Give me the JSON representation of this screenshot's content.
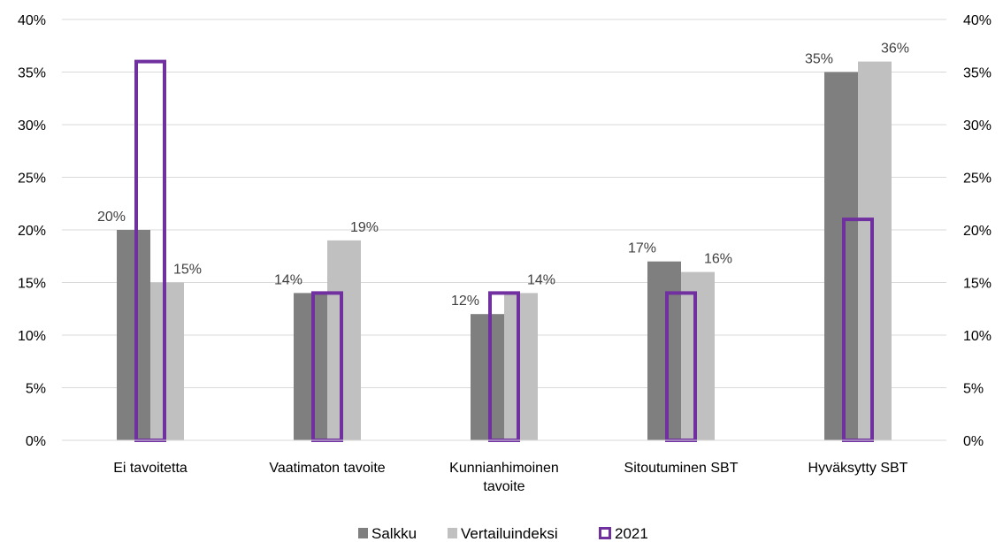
{
  "chart_data": {
    "type": "bar",
    "categories": [
      [
        "Ei tavoitetta"
      ],
      [
        "Vaatimaton tavoite"
      ],
      [
        "Kunnianhimoinen",
        "tavoite"
      ],
      [
        "Sitoutuminen SBT"
      ],
      [
        "Hyväksytty SBT"
      ]
    ],
    "series": [
      {
        "name": "Salkku",
        "color": "#7f7f7f",
        "values": [
          20,
          14,
          12,
          17,
          35
        ],
        "labels": [
          "20%",
          "14%",
          "12%",
          "17%",
          "35%"
        ]
      },
      {
        "name": "Vertailuindeksi",
        "color": "#c0c0c0",
        "values": [
          15,
          19,
          14,
          16,
          36
        ],
        "labels": [
          "15%",
          "19%",
          "14%",
          "16%",
          "36%"
        ]
      },
      {
        "name": "2021",
        "color": "#7030a0",
        "style": "outline",
        "axis": "secondary",
        "values": [
          36,
          14,
          14,
          14,
          21
        ]
      }
    ],
    "ylim": [
      0,
      40
    ],
    "y_ticks": [
      "0%",
      "5%",
      "10%",
      "15%",
      "20%",
      "25%",
      "30%",
      "35%",
      "40%"
    ],
    "y_ticks_right": [
      "0%",
      "5%",
      "10%",
      "15%",
      "20%",
      "25%",
      "30%",
      "35%",
      "40%"
    ],
    "grid": true,
    "legend": "bottom"
  }
}
